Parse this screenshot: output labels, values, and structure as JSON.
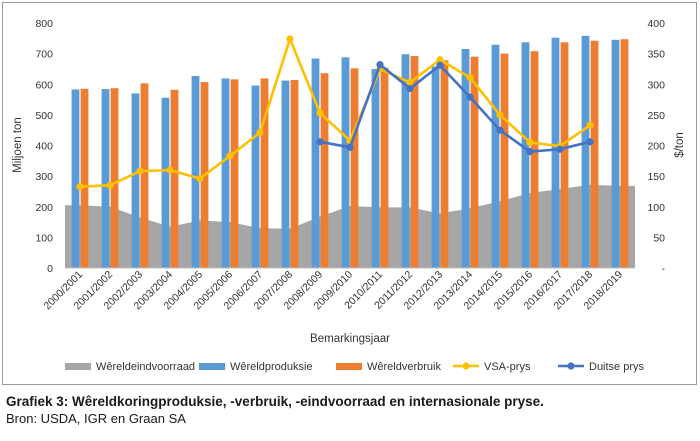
{
  "chart_data": {
    "type": "bar",
    "xlabel": "Bemarkingsjaar",
    "ylabel": "Miljoen ton",
    "y2label": "$/ton",
    "ylim": [
      0,
      800
    ],
    "y2lim": [
      0,
      400
    ],
    "yticks": [
      "0",
      "100",
      "200",
      "300",
      "400",
      "500",
      "600",
      "700",
      "800"
    ],
    "y2ticks": [
      "-",
      "50",
      "100",
      "150",
      "200",
      "250",
      "300",
      "350",
      "400"
    ],
    "grid": false,
    "legend_position": "bottom",
    "categories": [
      "2000/2001",
      "2001/2002",
      "2002/2003",
      "2003/2004",
      "2004/2005",
      "2005/2006",
      "2006/2007",
      "2007/2008",
      "2008/2009",
      "2009/2010",
      "2010/2011",
      "2011/2012",
      "2012/2013",
      "2013/2014",
      "2014/2015",
      "2015/2016",
      "2016/2017",
      "2017/2018",
      "2018/2019"
    ],
    "series": [
      {
        "name": "Wêreldeindvoorraad",
        "kind": "area",
        "axis": "left",
        "color": "#a6a6a6",
        "values": [
          205,
          200,
          165,
          135,
          155,
          150,
          130,
          128,
          168,
          202,
          198,
          198,
          178,
          195,
          218,
          245,
          258,
          272,
          268
        ]
      },
      {
        "name": "Wêreldproduksie",
        "kind": "bar",
        "axis": "left",
        "color": "#5b9bd5",
        "values": [
          583,
          584,
          570,
          556,
          627,
          619,
          596,
          612,
          684,
          688,
          650,
          698,
          658,
          715,
          729,
          737,
          752,
          758,
          745
        ]
      },
      {
        "name": "Wêreldverbruik",
        "kind": "bar",
        "axis": "left",
        "color": "#ed7d31",
        "values": [
          585,
          587,
          603,
          582,
          607,
          616,
          619,
          614,
          636,
          652,
          654,
          692,
          678,
          690,
          700,
          708,
          737,
          742,
          747
        ]
      },
      {
        "name": "VSA-prys",
        "kind": "line",
        "axis": "right",
        "color": "#ffc000",
        "values": [
          133,
          135,
          158,
          160,
          146,
          183,
          221,
          374,
          253,
          208,
          325,
          303,
          340,
          311,
          250,
          205,
          199,
          233,
          null
        ]
      },
      {
        "name": "Duitse prys",
        "kind": "line",
        "axis": "right",
        "color": "#4472c4",
        "values": [
          null,
          null,
          null,
          null,
          null,
          null,
          null,
          null,
          206,
          197,
          332,
          293,
          331,
          279,
          225,
          190,
          194,
          206,
          null
        ]
      }
    ]
  },
  "caption": {
    "title": "Grafiek 3: Wêreldkoringproduksie, -verbruik, -eindvoorraad en internasionale pryse.",
    "source": "Bron: USDA, IGR en Graan SA"
  }
}
